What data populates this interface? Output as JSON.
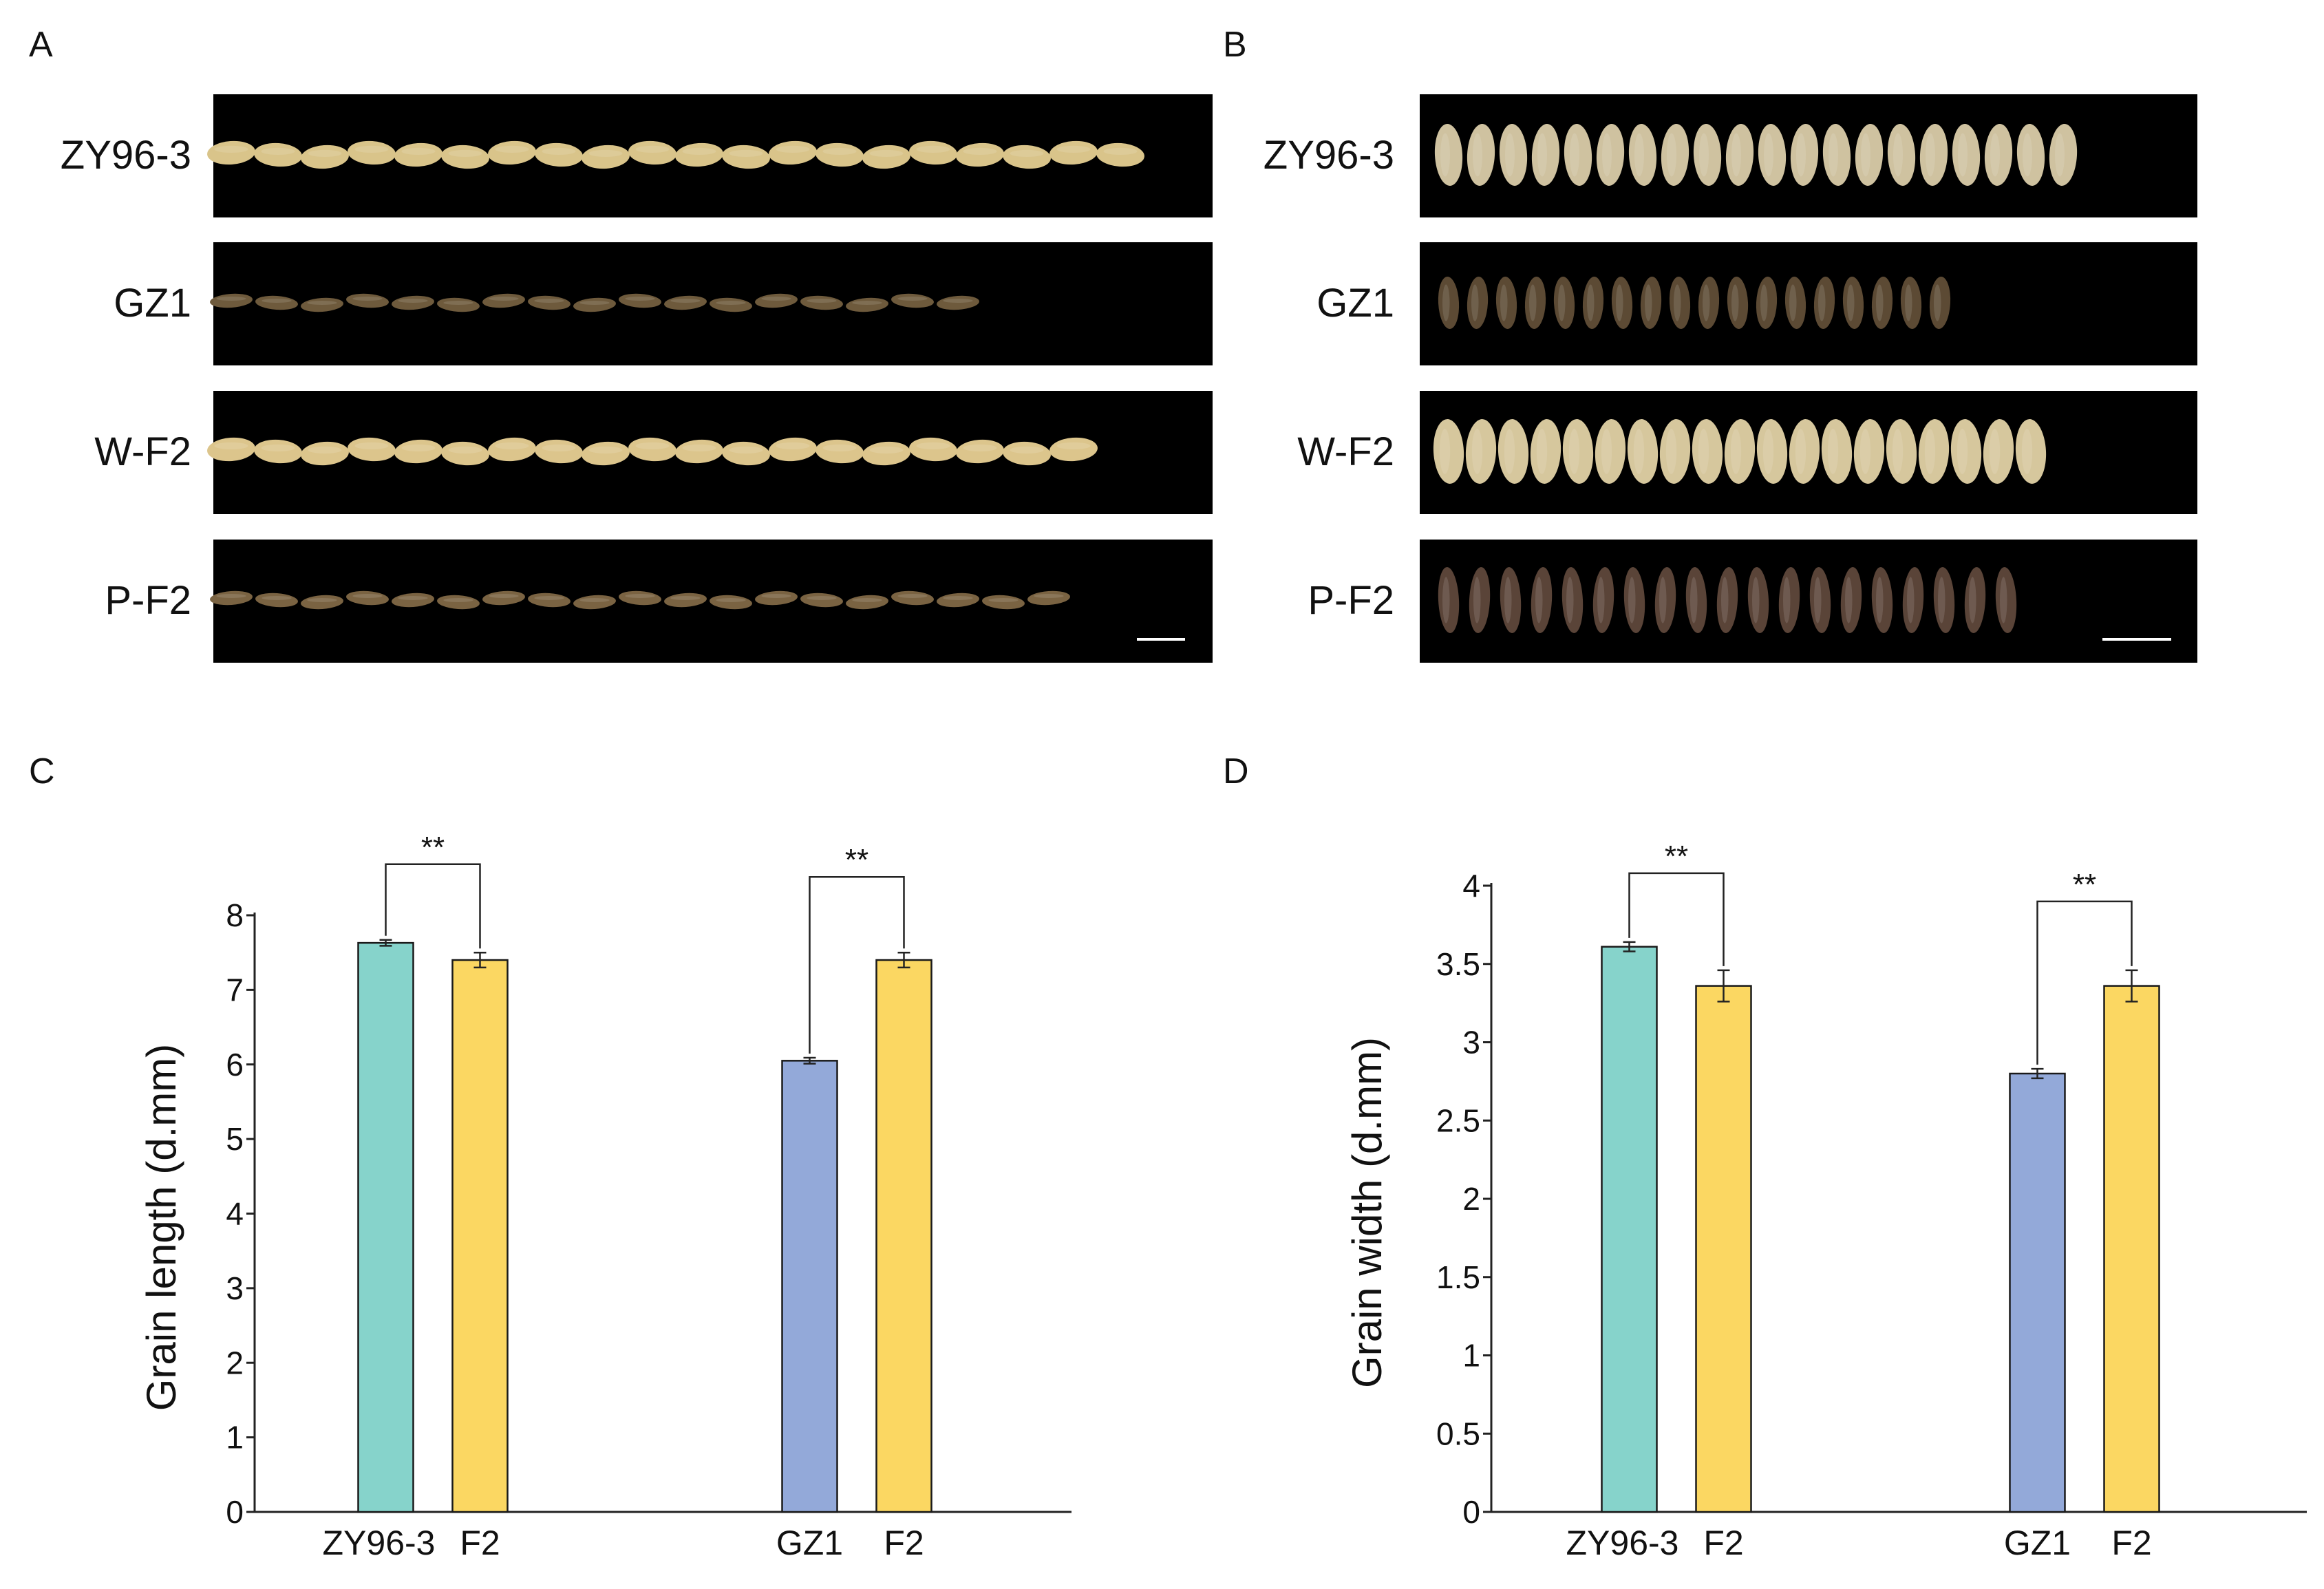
{
  "figure": {
    "photo_panels": [
      {
        "letter": "A",
        "view": "length",
        "rows": [
          {
            "label": "ZY96-3",
            "grain_count": 20,
            "grain_color": "#d9c48a"
          },
          {
            "label": "GZ1",
            "grain_count": 17,
            "grain_color": "#6e5a3c"
          },
          {
            "label": "W-F2",
            "grain_count": 19,
            "grain_color": "#dcc58c"
          },
          {
            "label": "P-F2",
            "grain_count": 19,
            "grain_color": "#7a6342"
          }
        ]
      },
      {
        "letter": "B",
        "view": "width",
        "rows": [
          {
            "label": "ZY96-3",
            "grain_count": 20,
            "grain_color": "#cfc2a0"
          },
          {
            "label": "GZ1",
            "grain_count": 18,
            "grain_color": "#5c4a34"
          },
          {
            "label": "W-F2",
            "grain_count": 19,
            "grain_color": "#d6c79d"
          },
          {
            "label": "P-F2",
            "grain_count": 19,
            "grain_color": "#5a4438"
          }
        ]
      }
    ],
    "colors": {
      "photo_background": "#000000",
      "parent_bar": "#86d3cb",
      "gz1_bar": "#93a9d9",
      "f2_bar": "#fbd762",
      "bar_edge": "#1a1a1a"
    }
  },
  "chart_data": [
    {
      "type": "bar",
      "panel": "C",
      "ylabel": "Grain length (d.mm)",
      "ylim": [
        0,
        8
      ],
      "yticks": [
        "0",
        "1",
        "2",
        "3",
        "4",
        "5",
        "6",
        "7",
        "8"
      ],
      "groups": [
        {
          "bars": [
            {
              "category": "ZY96-3",
              "value": 7.63,
              "error": 0.04,
              "color_key": "parent_bar"
            },
            {
              "category": "F2",
              "value": 7.4,
              "error": 0.1,
              "color_key": "f2_bar"
            }
          ],
          "significance": "**"
        },
        {
          "bars": [
            {
              "category": "GZ1",
              "value": 6.05,
              "error": 0.04,
              "color_key": "gz1_bar"
            },
            {
              "category": "F2",
              "value": 7.4,
              "error": 0.1,
              "color_key": "f2_bar"
            }
          ],
          "significance": "**"
        }
      ]
    },
    {
      "type": "bar",
      "panel": "D",
      "ylabel": "Grain width (d.mm)",
      "ylim": [
        0,
        4
      ],
      "yticks": [
        "0",
        "0.5",
        "1",
        "1.5",
        "2",
        "2.5",
        "3",
        "3.5",
        "4"
      ],
      "groups": [
        {
          "bars": [
            {
              "category": "ZY96-3",
              "value": 3.61,
              "error": 0.03,
              "color_key": "parent_bar"
            },
            {
              "category": "F2",
              "value": 3.36,
              "error": 0.1,
              "color_key": "f2_bar"
            }
          ],
          "significance": "**"
        },
        {
          "bars": [
            {
              "category": "GZ1",
              "value": 2.8,
              "error": 0.03,
              "color_key": "gz1_bar"
            },
            {
              "category": "F2",
              "value": 3.36,
              "error": 0.1,
              "color_key": "f2_bar"
            }
          ],
          "significance": "**"
        }
      ]
    }
  ]
}
